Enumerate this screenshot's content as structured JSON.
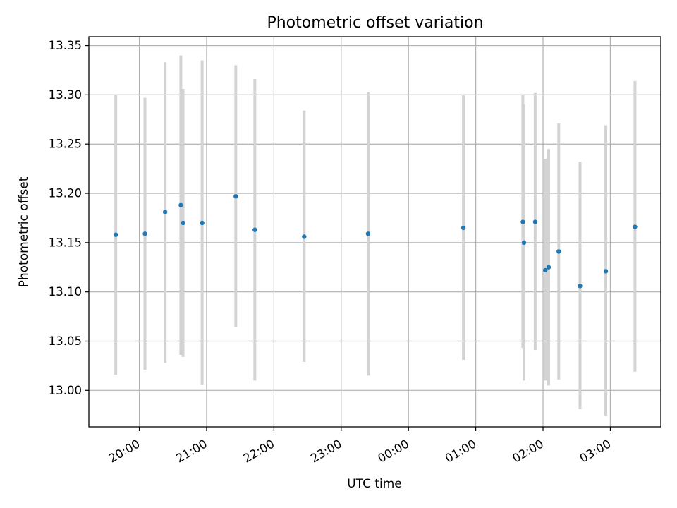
{
  "chart_data": {
    "type": "scatter",
    "title": "Photometric offset variation",
    "xlabel": "UTC time",
    "ylabel": "Photometric offset",
    "grid": true,
    "error_bar_color": "#d3d3d3",
    "point_color": "#1f77b4",
    "x_ticks": [
      "20:00",
      "21:00",
      "22:00",
      "23:00",
      "00:00",
      "01:00",
      "02:00",
      "03:00"
    ],
    "y_ticks": [
      "13.00",
      "13.05",
      "13.10",
      "13.15",
      "13.20",
      "13.25",
      "13.30",
      "13.35"
    ],
    "xlim": [
      "19:15",
      "03:45"
    ],
    "ylim": [
      12.963,
      13.359
    ],
    "points": [
      {
        "x": "19:39",
        "y": 13.158,
        "ylow": 13.016,
        "yhigh": 13.3
      },
      {
        "x": "20:05",
        "y": 13.159,
        "ylow": 13.021,
        "yhigh": 13.297
      },
      {
        "x": "20:23",
        "y": 13.181,
        "ylow": 13.028,
        "yhigh": 13.333
      },
      {
        "x": "20:37",
        "y": 13.188,
        "ylow": 13.036,
        "yhigh": 13.34
      },
      {
        "x": "20:39",
        "y": 13.17,
        "ylow": 13.034,
        "yhigh": 13.306
      },
      {
        "x": "20:56",
        "y": 13.17,
        "ylow": 13.006,
        "yhigh": 13.335
      },
      {
        "x": "21:26",
        "y": 13.197,
        "ylow": 13.064,
        "yhigh": 13.33
      },
      {
        "x": "21:43",
        "y": 13.163,
        "ylow": 13.01,
        "yhigh": 13.316
      },
      {
        "x": "22:27",
        "y": 13.156,
        "ylow": 13.029,
        "yhigh": 13.284
      },
      {
        "x": "23:24",
        "y": 13.159,
        "ylow": 13.015,
        "yhigh": 13.303
      },
      {
        "x": "00:49",
        "y": 13.165,
        "ylow": 13.031,
        "yhigh": 13.3
      },
      {
        "x": "01:42",
        "y": 13.171,
        "ylow": 13.043,
        "yhigh": 13.3
      },
      {
        "x": "01:43",
        "y": 13.15,
        "ylow": 13.01,
        "yhigh": 13.29
      },
      {
        "x": "01:53",
        "y": 13.171,
        "ylow": 13.041,
        "yhigh": 13.302
      },
      {
        "x": "02:02",
        "y": 13.122,
        "ylow": 13.01,
        "yhigh": 13.235
      },
      {
        "x": "02:05",
        "y": 13.125,
        "ylow": 13.005,
        "yhigh": 13.245
      },
      {
        "x": "02:14",
        "y": 13.141,
        "ylow": 13.011,
        "yhigh": 13.271
      },
      {
        "x": "02:33",
        "y": 13.106,
        "ylow": 12.981,
        "yhigh": 13.232
      },
      {
        "x": "02:56",
        "y": 13.121,
        "ylow": 12.974,
        "yhigh": 13.269
      },
      {
        "x": "03:22",
        "y": 13.166,
        "ylow": 13.019,
        "yhigh": 13.314
      }
    ]
  }
}
